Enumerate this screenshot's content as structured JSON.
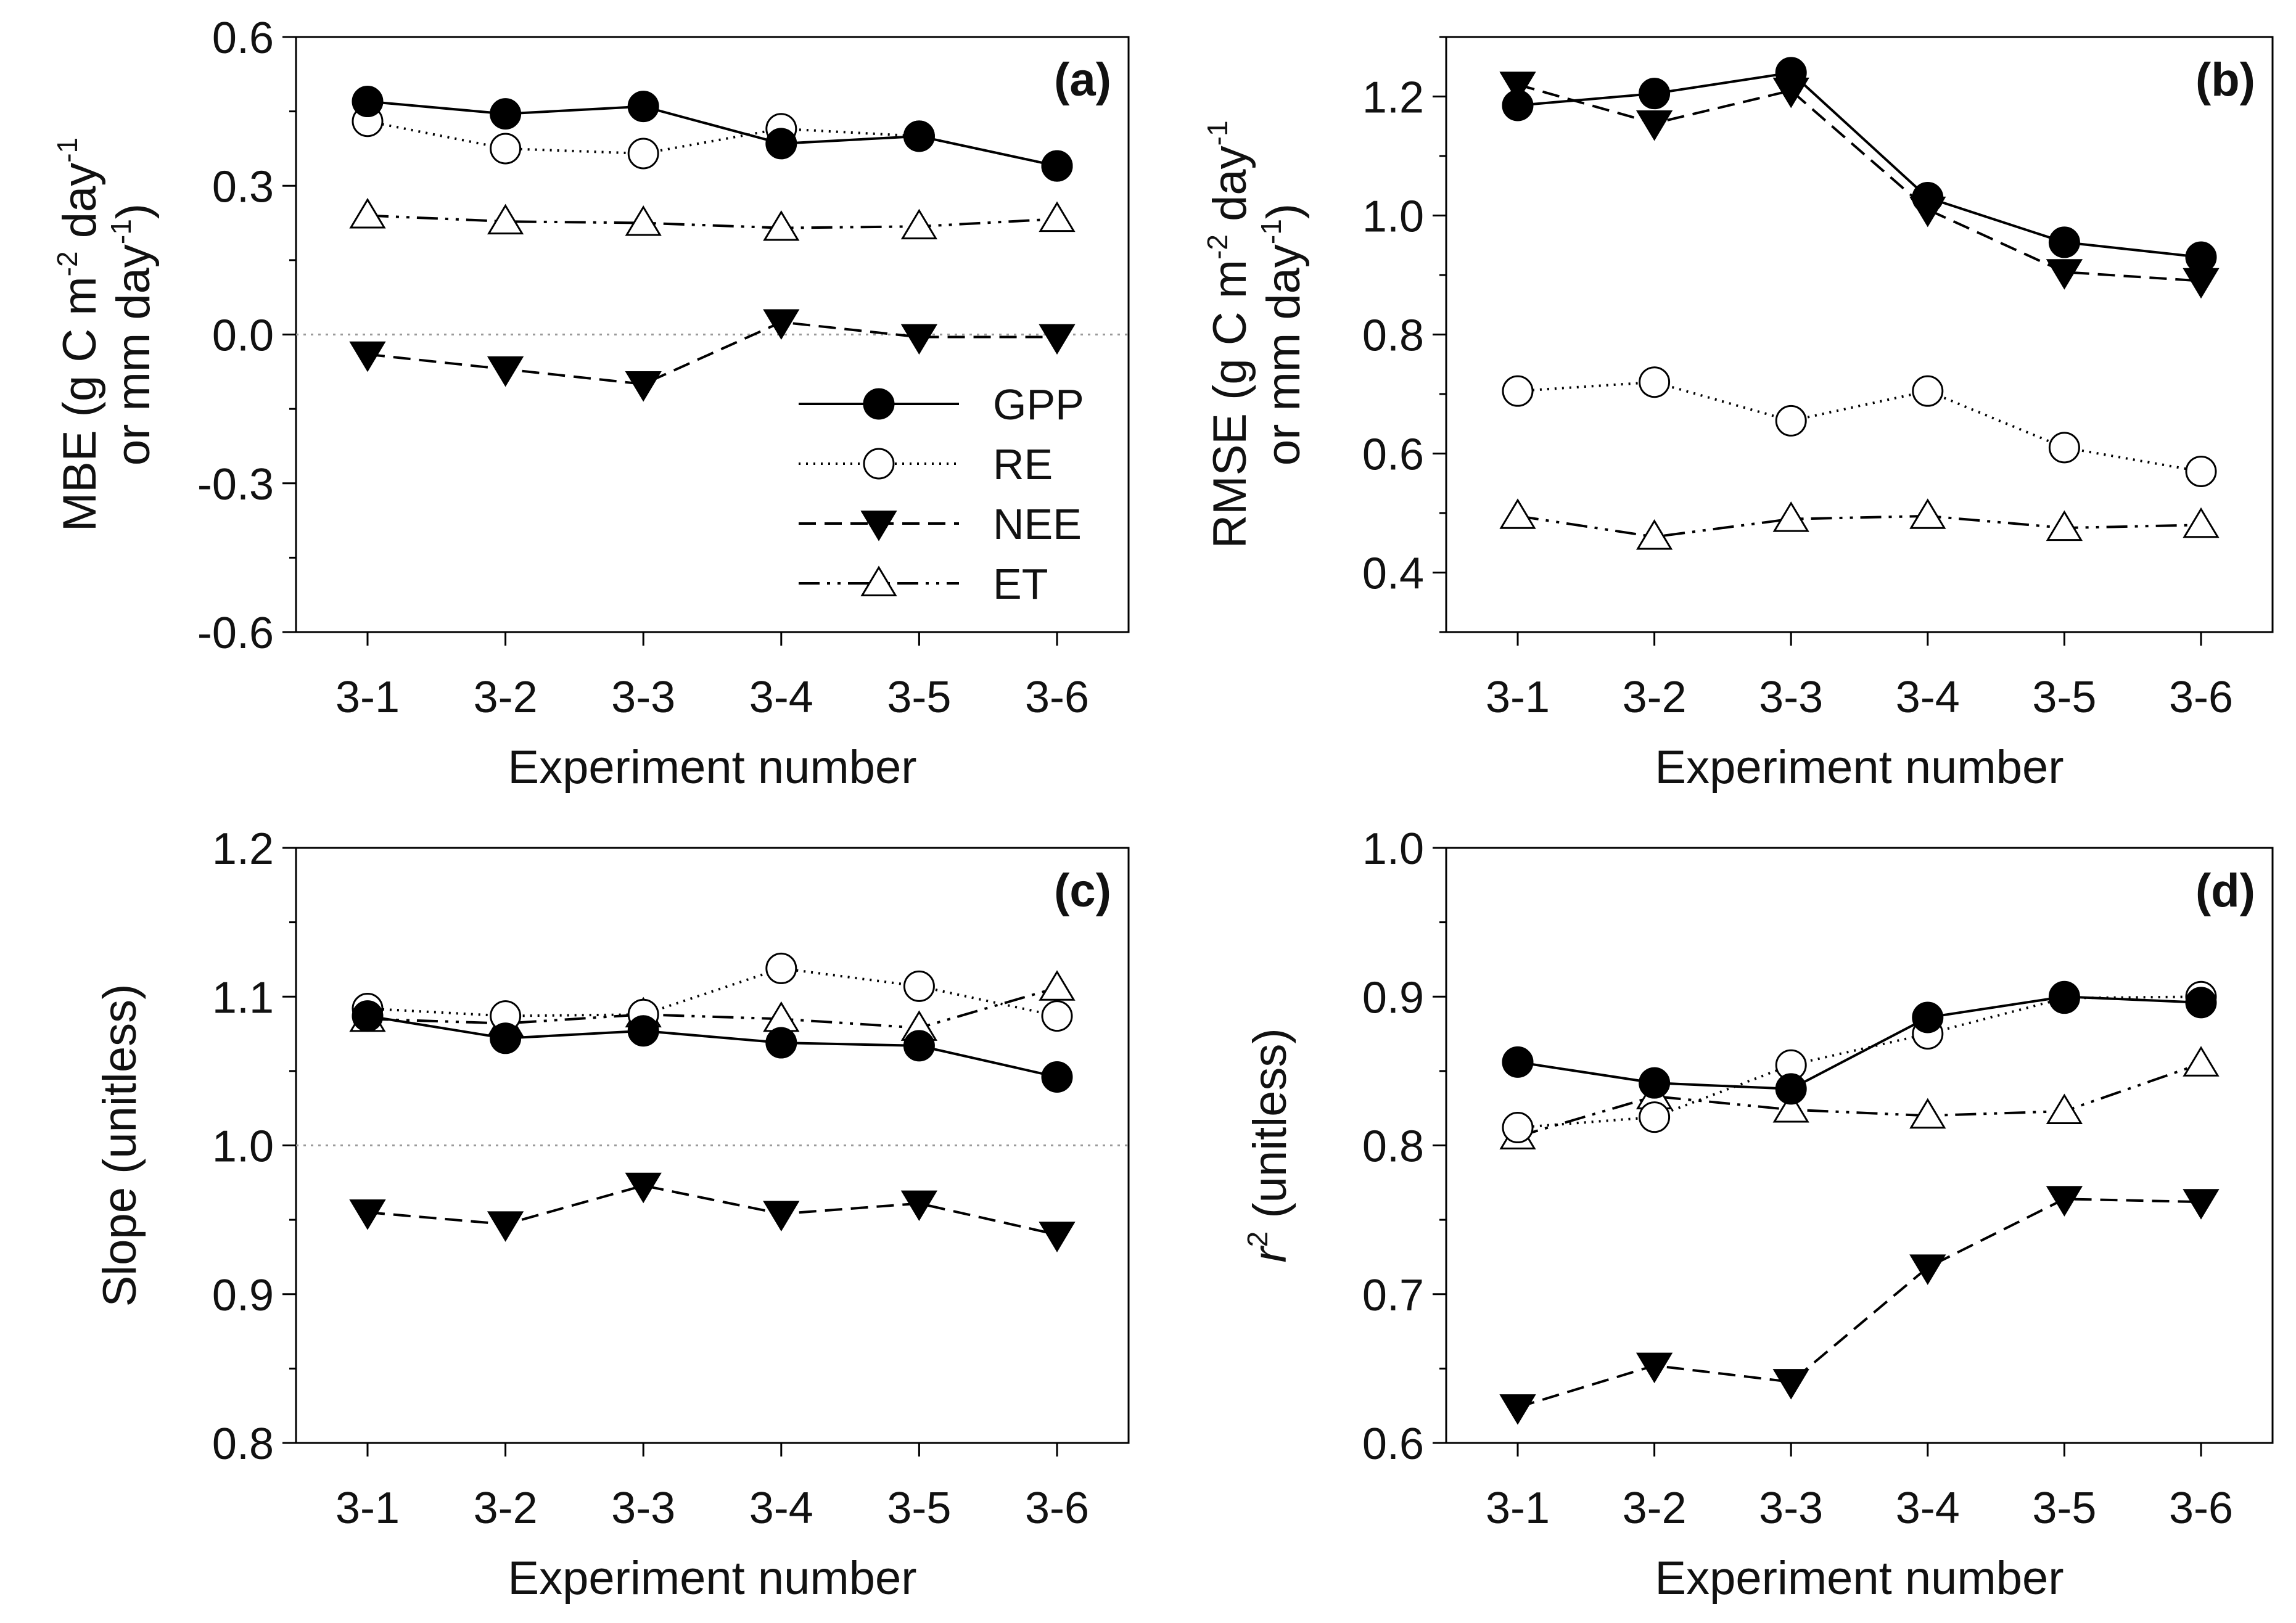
{
  "colors": {
    "ink": "#000000",
    "background": "#ffffff",
    "reference_line": "#9a9a9a"
  },
  "legend": {
    "items": [
      {
        "key": "GPP",
        "label": "GPP",
        "marker": "filled-circle",
        "line": "solid"
      },
      {
        "key": "RE",
        "label": "RE",
        "marker": "open-circle",
        "line": "dotted"
      },
      {
        "key": "NEE",
        "label": "NEE",
        "marker": "filled-down-triangle",
        "line": "dashed"
      },
      {
        "key": "ET",
        "label": "ET",
        "marker": "open-up-triangle",
        "line": "dash-dot-dot"
      }
    ]
  },
  "chart_data": [
    {
      "panel": "(a)",
      "type": "line",
      "categories": [
        "3-1",
        "3-2",
        "3-3",
        "3-4",
        "3-5",
        "3-6"
      ],
      "xlabel": "Experiment number",
      "ylabel_main": "MBE (g C m",
      "ylabel_sup1": "-2",
      "ylabel_mid": " day",
      "ylabel_sup2": "-1",
      "ylabel_line2": "or mm day",
      "ylabel_sup3": "-1",
      "ylabel_close": ")",
      "ylim": [
        -0.6,
        0.6
      ],
      "yticks": [
        -0.6,
        -0.3,
        0.0,
        0.3,
        0.6
      ],
      "ytick_labels": [
        "-0.6",
        "-0.3",
        "0.0",
        "0.3",
        "0.6"
      ],
      "minor_step": 0.15,
      "reference_line": 0.0,
      "show_legend": true,
      "series": [
        {
          "name": "GPP",
          "values": [
            0.47,
            0.445,
            0.46,
            0.385,
            0.4,
            0.34
          ]
        },
        {
          "name": "RE",
          "values": [
            0.43,
            0.375,
            0.365,
            0.415,
            0.4,
            0.34
          ]
        },
        {
          "name": "NEE",
          "values": [
            -0.04,
            -0.07,
            -0.1,
            0.025,
            -0.005,
            -0.005
          ]
        },
        {
          "name": "ET",
          "values": [
            0.24,
            0.228,
            0.225,
            0.215,
            0.218,
            0.233
          ]
        }
      ]
    },
    {
      "panel": "(b)",
      "type": "line",
      "categories": [
        "3-1",
        "3-2",
        "3-3",
        "3-4",
        "3-5",
        "3-6"
      ],
      "xlabel": "Experiment number",
      "ylabel_main": "RMSE (g C m",
      "ylabel_sup1": "-2",
      "ylabel_mid": " day",
      "ylabel_sup2": "-1",
      "ylabel_line2": "or mm day",
      "ylabel_sup3": "-1",
      "ylabel_close": ")",
      "ylim": [
        0.3,
        1.3
      ],
      "yticks": [
        0.4,
        0.6,
        0.8,
        1.0,
        1.2
      ],
      "ytick_labels": [
        "0.4",
        "0.6",
        "0.8",
        "1.0",
        "1.2"
      ],
      "minor_step": 0.1,
      "reference_line": null,
      "show_legend": false,
      "series": [
        {
          "name": "GPP",
          "values": [
            1.185,
            1.205,
            1.24,
            1.03,
            0.955,
            0.93
          ]
        },
        {
          "name": "RE",
          "values": [
            0.705,
            0.72,
            0.655,
            0.705,
            0.61,
            0.57
          ]
        },
        {
          "name": "NEE",
          "values": [
            1.22,
            1.155,
            1.21,
            1.01,
            0.905,
            0.89
          ]
        },
        {
          "name": "ET",
          "values": [
            0.495,
            0.46,
            0.49,
            0.495,
            0.475,
            0.48
          ]
        }
      ]
    },
    {
      "panel": "(c)",
      "type": "line",
      "categories": [
        "3-1",
        "3-2",
        "3-3",
        "3-4",
        "3-5",
        "3-6"
      ],
      "xlabel": "Experiment number",
      "ylabel_main": "Slope (unitless)",
      "ylim": [
        0.8,
        1.2
      ],
      "yticks": [
        0.8,
        0.9,
        1.0,
        1.1,
        1.2
      ],
      "ytick_labels": [
        "0.8",
        "0.9",
        "1.0",
        "1.1",
        "1.2"
      ],
      "minor_step": 0.05,
      "reference_line": 1.0,
      "show_legend": false,
      "series": [
        {
          "name": "GPP",
          "values": [
            1.087,
            1.072,
            1.077,
            1.069,
            1.067,
            1.046
          ]
        },
        {
          "name": "RE",
          "values": [
            1.092,
            1.087,
            1.088,
            1.119,
            1.107,
            1.087
          ]
        },
        {
          "name": "NEE",
          "values": [
            0.955,
            0.947,
            0.973,
            0.954,
            0.961,
            0.94
          ]
        },
        {
          "name": "ET",
          "values": [
            1.085,
            1.082,
            1.088,
            1.085,
            1.079,
            1.106
          ]
        }
      ]
    },
    {
      "panel": "(d)",
      "type": "line",
      "categories": [
        "3-1",
        "3-2",
        "3-3",
        "3-4",
        "3-5",
        "3-6"
      ],
      "xlabel": "Experiment number",
      "ylabel_italic": "r",
      "ylabel_sup1": "2",
      "ylabel_rest": " (unitless)",
      "ylim": [
        0.6,
        1.0
      ],
      "yticks": [
        0.6,
        0.7,
        0.8,
        0.9,
        1.0
      ],
      "ytick_labels": [
        "0.6",
        "0.7",
        "0.8",
        "0.9",
        "1.0"
      ],
      "minor_step": 0.05,
      "reference_line": null,
      "show_legend": false,
      "series": [
        {
          "name": "GPP",
          "values": [
            0.856,
            0.842,
            0.838,
            0.886,
            0.9,
            0.896
          ]
        },
        {
          "name": "RE",
          "values": [
            0.812,
            0.819,
            0.854,
            0.875,
            0.899,
            0.9
          ]
        },
        {
          "name": "NEE",
          "values": [
            0.624,
            0.652,
            0.641,
            0.718,
            0.764,
            0.762
          ]
        },
        {
          "name": "ET",
          "values": [
            0.806,
            0.833,
            0.824,
            0.82,
            0.823,
            0.855
          ]
        }
      ]
    }
  ]
}
